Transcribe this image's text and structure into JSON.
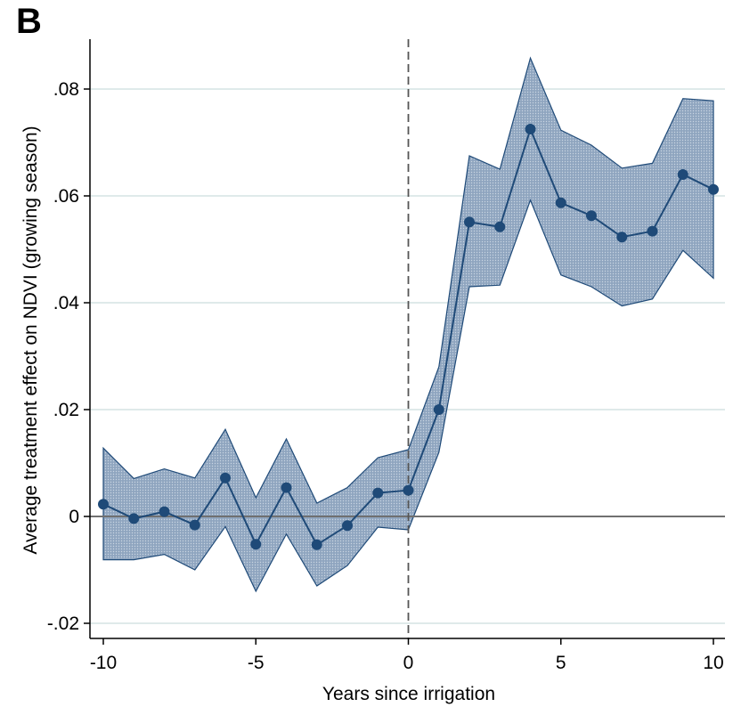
{
  "panel_label": "B",
  "chart_data": {
    "type": "line",
    "title": "",
    "xlabel": "Years since irrigation",
    "ylabel": "Average treatment effect on NDVI (growing season)",
    "xlim": [
      -10,
      10
    ],
    "ylim": [
      -0.02,
      0.08
    ],
    "x_ticks": [
      -10,
      -5,
      0,
      5,
      10
    ],
    "x_tick_labels": [
      "-10",
      "-5",
      "0",
      "5",
      "10"
    ],
    "y_ticks": [
      -0.02,
      0,
      0.02,
      0.04,
      0.06,
      0.08
    ],
    "y_tick_labels": [
      "-.02",
      "0",
      ".02",
      ".04",
      ".06",
      ".08"
    ],
    "grid": "horizontal",
    "reference_lines": {
      "vertical_dashed_at_x": 0,
      "horizontal_solid_at_y": 0
    },
    "series": [
      {
        "x": [
          -10,
          -9,
          -8,
          -7,
          -6,
          -5,
          -4,
          -3,
          -2,
          -1,
          0,
          1,
          2,
          3,
          4,
          5,
          6,
          7,
          8,
          9,
          10
        ],
        "y": [
          0.0023,
          -0.0004,
          0.0009,
          -0.0016,
          0.0072,
          -0.0052,
          0.0054,
          -0.0053,
          -0.0017,
          0.0044,
          0.0049,
          0.02,
          0.0551,
          0.0542,
          0.0725,
          0.0587,
          0.0563,
          0.0523,
          0.0534,
          0.064,
          0.0612
        ],
        "ci_upper": [
          0.0128,
          0.0071,
          0.0089,
          0.0072,
          0.0163,
          0.0035,
          0.0145,
          0.0025,
          0.0054,
          0.011,
          0.0125,
          0.028,
          0.0675,
          0.065,
          0.0858,
          0.0723,
          0.0695,
          0.0652,
          0.0661,
          0.0782,
          0.0778
        ],
        "ci_lower": [
          -0.0081,
          -0.0081,
          -0.0071,
          -0.01,
          -0.0019,
          -0.014,
          -0.0033,
          -0.013,
          -0.0092,
          -0.002,
          -0.0025,
          0.012,
          0.043,
          0.0433,
          0.0592,
          0.0452,
          0.043,
          0.0394,
          0.0407,
          0.0498,
          0.0446
        ]
      }
    ],
    "colors": {
      "line": "#1f4a78",
      "marker": "#1f4a78",
      "band_fill": "#8ea4bf",
      "band_edge": "#1f4a78",
      "grid": "#dfeaea",
      "zero_line": "#707070",
      "dashed_line": "#555555"
    }
  }
}
